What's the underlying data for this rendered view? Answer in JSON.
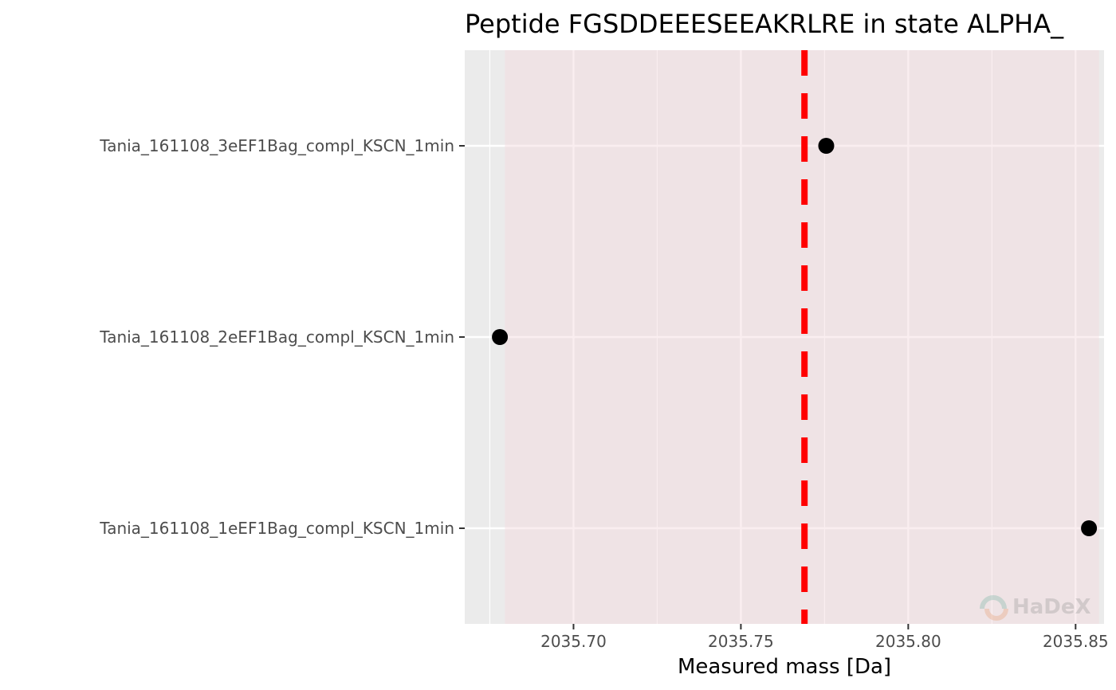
{
  "chart_data": {
    "type": "scatter",
    "title": "Peptide FGSDDEEESEEAKRLRE in state ALPHA_",
    "xlabel": "Measured mass [Da]",
    "ylabel": "",
    "xlim": [
      2035.6675,
      2035.8585
    ],
    "x_ticks": [
      2035.7,
      2035.75,
      2035.8,
      2035.85
    ],
    "x_tick_labels": [
      "2035.70",
      "2035.75",
      "2035.80",
      "2035.85"
    ],
    "categories": [
      "Tania_161108_1eEF1Bag_compl_KSCN_1min",
      "Tania_161108_2eEF1Bag_compl_KSCN_1min",
      "Tania_161108_3eEF1Bag_compl_KSCN_1min"
    ],
    "points": [
      {
        "category": "Tania_161108_3eEF1Bag_compl_KSCN_1min",
        "x": 2035.7755
      },
      {
        "category": "Tania_161108_2eEF1Bag_compl_KSCN_1min",
        "x": 2035.678
      },
      {
        "category": "Tania_161108_1eEF1Bag_compl_KSCN_1min",
        "x": 2035.854
      }
    ],
    "reference_line": {
      "x": 2035.769,
      "style": "dashed",
      "color": "#ff0000"
    },
    "shaded_band": {
      "xmin": 2035.6795,
      "xmax": 2035.857,
      "color": "#f3d9de"
    },
    "grid": true,
    "panel_background": "#ebebeb",
    "point_color": "#000000",
    "watermark": "HaDeX"
  }
}
